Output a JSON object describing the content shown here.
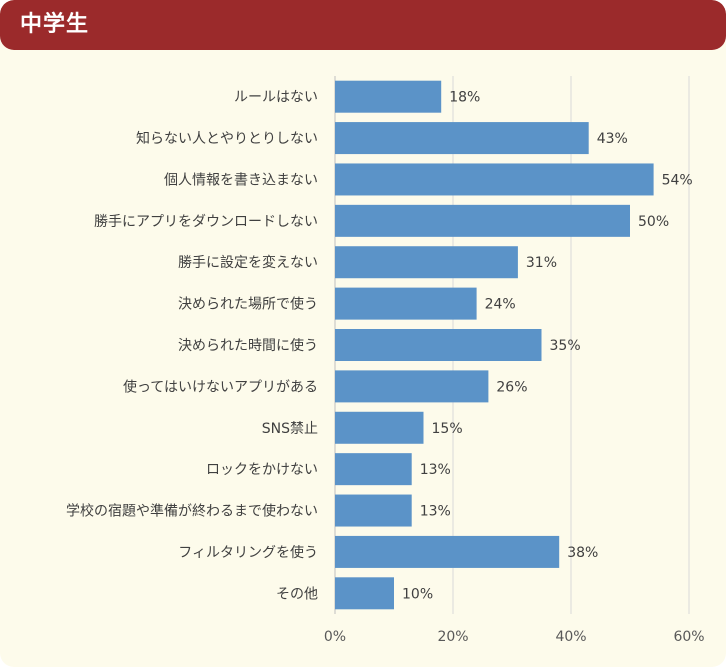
{
  "header": {
    "title": "中学生"
  },
  "chart_data": {
    "type": "bar",
    "orientation": "horizontal",
    "categories": [
      "ルールはない",
      "知らない人とやりとりしない",
      "個人情報を書き込まない",
      "勝手にアプリをダウンロードしない",
      "勝手に設定を変えない",
      "決められた場所で使う",
      "決められた時間に使う",
      "使ってはいけないアプリがある",
      "SNS禁止",
      "ロックをかけない",
      "学校の宿題や準備が終わるまで使わない",
      "フィルタリングを使う",
      "その他"
    ],
    "values": [
      18,
      43,
      54,
      50,
      31,
      24,
      35,
      26,
      15,
      13,
      13,
      38,
      10
    ],
    "value_labels": [
      "18%",
      "43%",
      "54%",
      "50%",
      "31%",
      "24%",
      "35%",
      "26%",
      "15%",
      "13%",
      "13%",
      "38%",
      "10%"
    ],
    "xlim": [
      0,
      60
    ],
    "xticks": [
      0,
      20,
      40,
      60
    ],
    "xtick_labels": [
      "0%",
      "20%",
      "40%",
      "60%"
    ],
    "grid": true,
    "bar_color": "#5b93c8",
    "title": "",
    "xlabel": "",
    "ylabel": ""
  }
}
